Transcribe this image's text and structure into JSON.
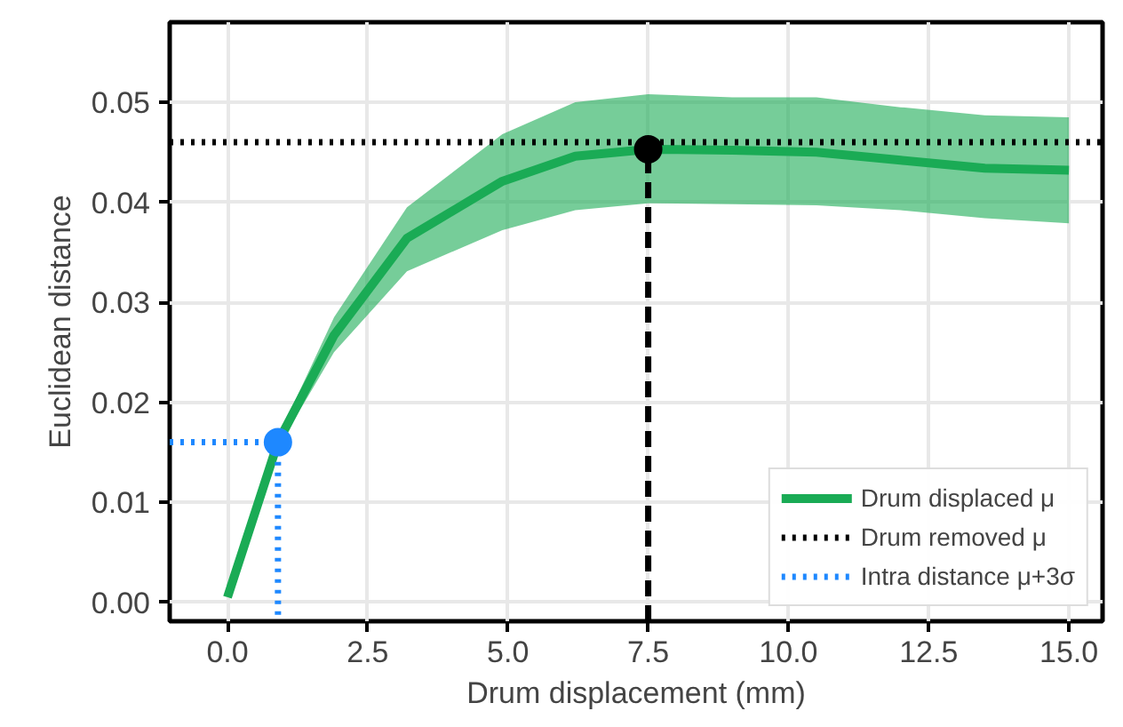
{
  "chart_data": {
    "type": "line",
    "xlabel": "Drum displacement (mm)",
    "ylabel": "Euclidean distance",
    "xlim": [
      -1.03,
      15.6
    ],
    "ylim": [
      -0.0019,
      0.058
    ],
    "xticks": [
      {
        "value": 0,
        "label": "0.0"
      },
      {
        "value": 2.5,
        "label": "2.5"
      },
      {
        "value": 5,
        "label": "5.0"
      },
      {
        "value": 7.5,
        "label": "7.5"
      },
      {
        "value": 10,
        "label": "10.0"
      },
      {
        "value": 12.5,
        "label": "12.5"
      },
      {
        "value": 15,
        "label": "15.0"
      }
    ],
    "yticks": [
      {
        "value": 0,
        "label": "0.00"
      },
      {
        "value": 0.01,
        "label": "0.01"
      },
      {
        "value": 0.02,
        "label": "0.02"
      },
      {
        "value": 0.03,
        "label": "0.03"
      },
      {
        "value": 0.04,
        "label": "0.04"
      },
      {
        "value": 0.05,
        "label": "0.05"
      }
    ],
    "grid": true,
    "legend": "bottom right",
    "series": [
      {
        "name": "Drum displaced μ",
        "color": "#1aab55",
        "line_style": "solid",
        "x": [
          0,
          0.9,
          1.9,
          3.2,
          4.9,
          6.2,
          7.5,
          9,
          10.5,
          12,
          13.5,
          15
        ],
        "values": [
          0.0005,
          0.016,
          0.0267,
          0.0364,
          0.0421,
          0.0446,
          0.0453,
          0.0452,
          0.045,
          0.0442,
          0.0434,
          0.0432
        ],
        "lower": [
          0.0005,
          0.0155,
          0.025,
          0.0331,
          0.0372,
          0.0392,
          0.0399,
          0.0398,
          0.0397,
          0.0392,
          0.0384,
          0.0379
        ],
        "upper": [
          0.0005,
          0.0165,
          0.0285,
          0.0395,
          0.0468,
          0.05,
          0.0508,
          0.0505,
          0.0505,
          0.0495,
          0.0487,
          0.0485
        ]
      },
      {
        "name": "Drum removed μ",
        "color": "#000000",
        "line_style": "dotted",
        "x": [
          -1.03,
          15.6
        ],
        "values": [
          0.046,
          0.046
        ]
      },
      {
        "name": "Intra distance μ+3σ",
        "color": "#1e88ff",
        "line_style": "dotted",
        "x": [
          -1.03,
          0.9,
          0.9
        ],
        "values": [
          0.016,
          0.016,
          -0.0019
        ]
      },
      {
        "color": "#000000",
        "line_style": "dashed",
        "x": [
          7.5,
          7.5
        ],
        "values": [
          -0.0019,
          0.0453
        ]
      },
      {
        "type": "scatter",
        "color": "#000000",
        "marker": "circle",
        "x": [
          7.5
        ],
        "values": [
          0.0453
        ]
      },
      {
        "type": "scatter",
        "color": "#1e88ff",
        "marker": "circle",
        "x": [
          0.9
        ],
        "values": [
          0.016
        ]
      }
    ]
  }
}
